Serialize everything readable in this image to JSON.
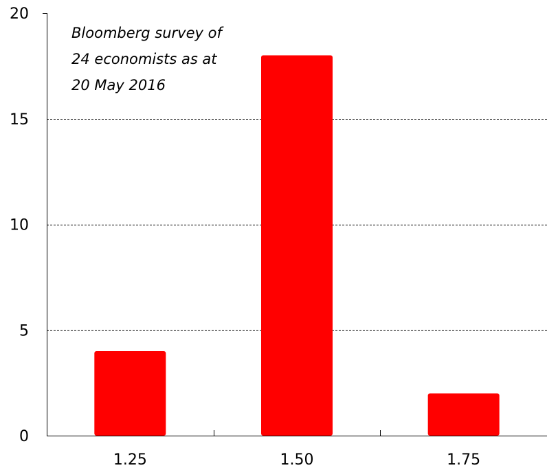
{
  "chart_data": {
    "type": "bar",
    "categories": [
      "1.25",
      "1.50",
      "1.75"
    ],
    "values": [
      4,
      18,
      2
    ],
    "ylim": [
      0,
      20
    ],
    "yticks": [
      0,
      5,
      10,
      15,
      20
    ],
    "grid": "horizontal dashed",
    "bar_color": "#ff0000",
    "annotation": {
      "lines": [
        "Bloomberg survey of",
        "24 economists as at",
        "20 May 2016"
      ]
    },
    "title": "",
    "xlabel": "",
    "ylabel": ""
  }
}
